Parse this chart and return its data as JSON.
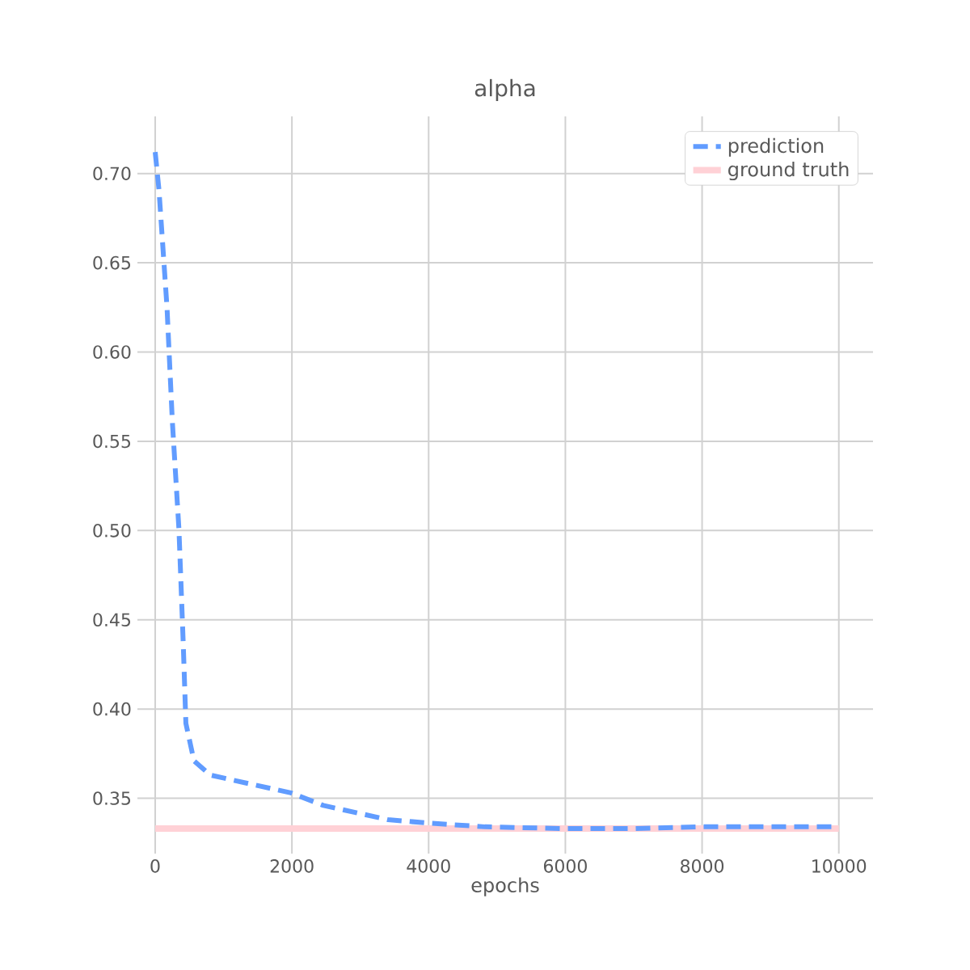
{
  "chart_data": {
    "type": "line",
    "title": "alpha",
    "xlabel": "epochs",
    "xlim": [
      -260,
      10500
    ],
    "ylim": [
      0.319,
      0.732
    ],
    "xticks": [
      0,
      2000,
      4000,
      6000,
      8000,
      10000
    ],
    "yticks": [
      {
        "value": 0.35,
        "label": "0.35"
      },
      {
        "value": 0.4,
        "label": "0.40"
      },
      {
        "value": 0.45,
        "label": "0.45"
      },
      {
        "value": 0.5,
        "label": "0.50"
      },
      {
        "value": 0.55,
        "label": "0.55"
      },
      {
        "value": 0.6,
        "label": "0.60"
      },
      {
        "value": 0.65,
        "label": "0.65"
      },
      {
        "value": 0.7,
        "label": "0.70"
      }
    ],
    "grid": true,
    "legend": "top right",
    "series": [
      {
        "name": "prediction",
        "color": "#619cff",
        "line_style": "dashed",
        "x": [
          0,
          55,
          173,
          251,
          347,
          410,
          449,
          567,
          804,
          1986,
          2459,
          3404,
          4035,
          4823,
          6005,
          6950,
          7967,
          9941
        ],
        "values": [
          0.712,
          0.691,
          0.625,
          0.561,
          0.501,
          0.437,
          0.392,
          0.371,
          0.363,
          0.353,
          0.346,
          0.338,
          0.336,
          0.334,
          0.333,
          0.333,
          0.334,
          0.334
        ]
      },
      {
        "name": "ground truth",
        "color": "#ffd1d6",
        "line_style": "solid",
        "x": [
          0,
          10000
        ],
        "values": [
          0.333,
          0.333
        ]
      }
    ]
  }
}
